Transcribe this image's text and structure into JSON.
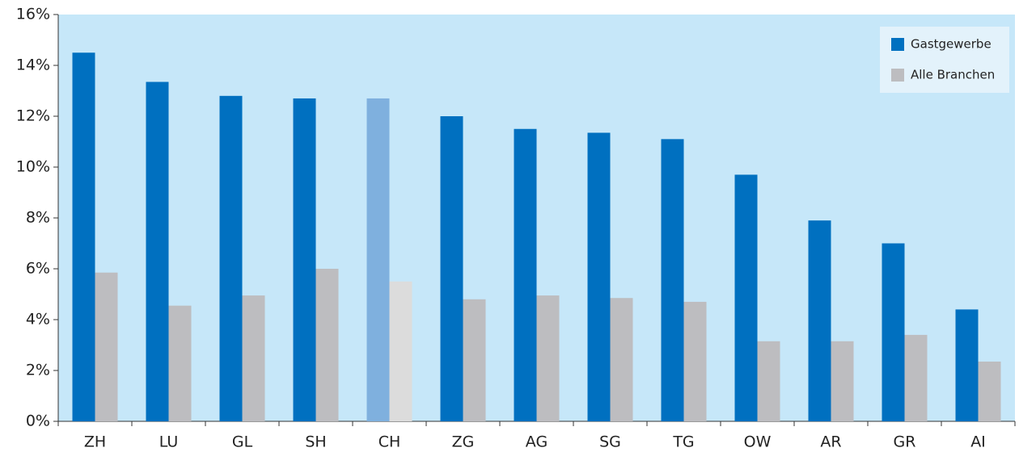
{
  "chart_data": {
    "type": "bar",
    "categories": [
      "ZH",
      "LU",
      "GL",
      "SH",
      "CH",
      "ZG",
      "AG",
      "SG",
      "TG",
      "OW",
      "AR",
      "GR",
      "AI"
    ],
    "series": [
      {
        "name": "Gastgewerbe",
        "color": "#0070c0",
        "colors": [
          "#0070c0",
          "#0070c0",
          "#0070c0",
          "#0070c0",
          "#7fb0de",
          "#0070c0",
          "#0070c0",
          "#0070c0",
          "#0070c0",
          "#0070c0",
          "#0070c0",
          "#0070c0",
          "#0070c0"
        ],
        "values": [
          14.5,
          13.35,
          12.8,
          12.7,
          12.7,
          12.0,
          11.5,
          11.35,
          11.1,
          9.7,
          7.9,
          7.0,
          4.4
        ]
      },
      {
        "name": "Alle Branchen",
        "color": "#bdbdc0",
        "colors": [
          "#bdbdc0",
          "#bdbdc0",
          "#bdbdc0",
          "#bdbdc0",
          "#dcdcdc",
          "#bdbdc0",
          "#bdbdc0",
          "#bdbdc0",
          "#bdbdc0",
          "#bdbdc0",
          "#bdbdc0",
          "#bdbdc0",
          "#bdbdc0"
        ],
        "values": [
          5.85,
          4.55,
          4.95,
          6.0,
          5.5,
          4.8,
          4.95,
          4.85,
          4.7,
          3.15,
          3.15,
          3.4,
          2.35
        ]
      }
    ],
    "ylim": [
      0,
      16
    ],
    "yticks": [
      {
        "value": 0,
        "label": "0%"
      },
      {
        "value": 2,
        "label": "2%"
      },
      {
        "value": 4,
        "label": "4%"
      },
      {
        "value": 6,
        "label": "6%"
      },
      {
        "value": 8,
        "label": "8%"
      },
      {
        "value": 10,
        "label": "10%"
      },
      {
        "value": 12,
        "label": "12%"
      },
      {
        "value": 14,
        "label": "14%"
      },
      {
        "value": 16,
        "label": "16%"
      }
    ],
    "legend": "upper right",
    "background": "#c6e7f9"
  }
}
